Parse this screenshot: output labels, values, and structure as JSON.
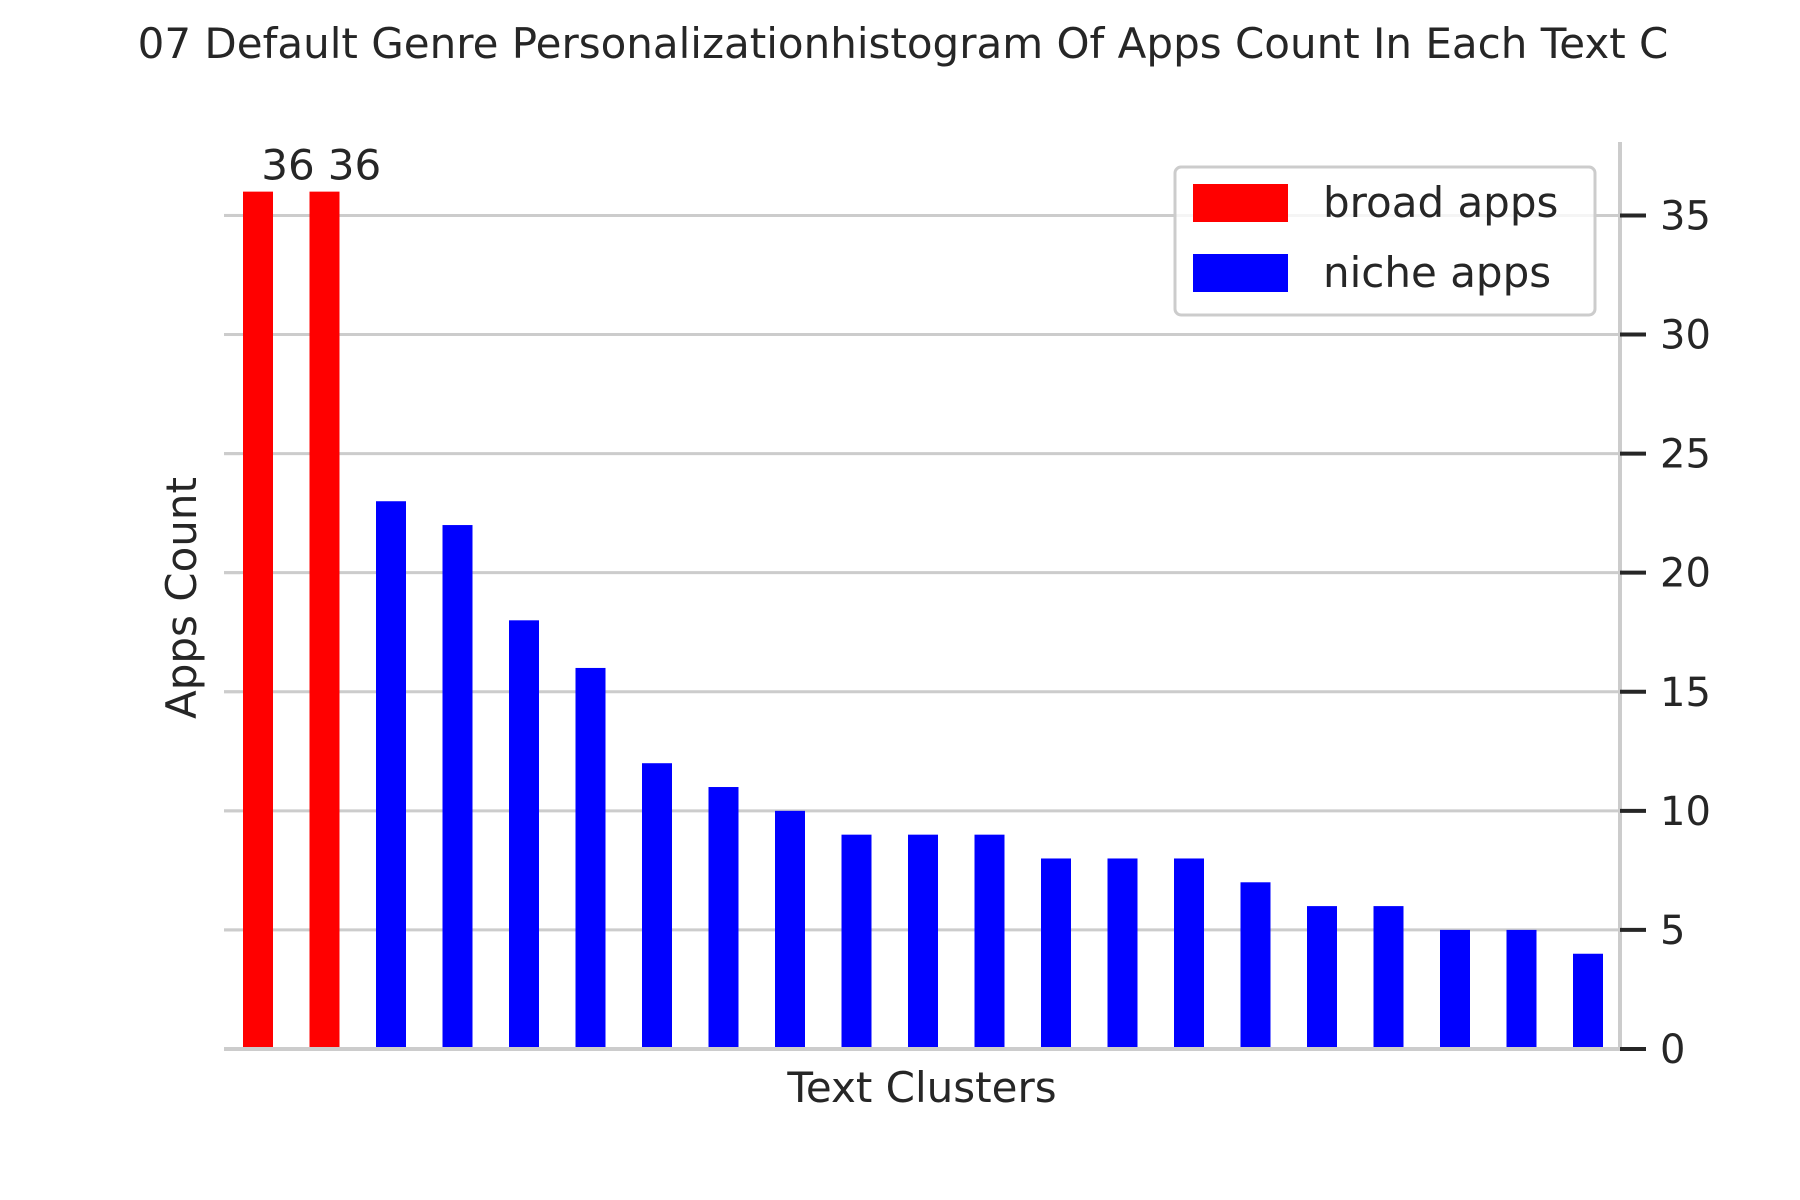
{
  "chart_data": {
    "type": "bar",
    "title": "07 Default Genre Personalizationhistogram Of Apps Count In Each Text C",
    "xlabel": "Text Clusters",
    "ylabel": "Apps Count",
    "ylim": [
      0,
      38
    ],
    "yticks": [
      0,
      5,
      10,
      15,
      20,
      25,
      30,
      35
    ],
    "ytick_labels": [
      "0",
      "5",
      "10",
      "15",
      "20",
      "25",
      "30",
      "35"
    ],
    "y_axis_side": "right",
    "grid": "horizontal",
    "legend_position": "top-right",
    "series": [
      {
        "name": "broad apps",
        "color": "#ff0000",
        "values": [
          36,
          36
        ]
      },
      {
        "name": "niche apps",
        "color": "#0000ff",
        "values": [
          23,
          22,
          18,
          16,
          12,
          11,
          10,
          9,
          9,
          9,
          8,
          8,
          8,
          7,
          6,
          6,
          5,
          5,
          4
        ]
      }
    ],
    "data_labels": [
      "36",
      "36"
    ],
    "colors": {
      "grid": "#cccccc",
      "axis": "#cccccc",
      "text": "#262626"
    }
  }
}
